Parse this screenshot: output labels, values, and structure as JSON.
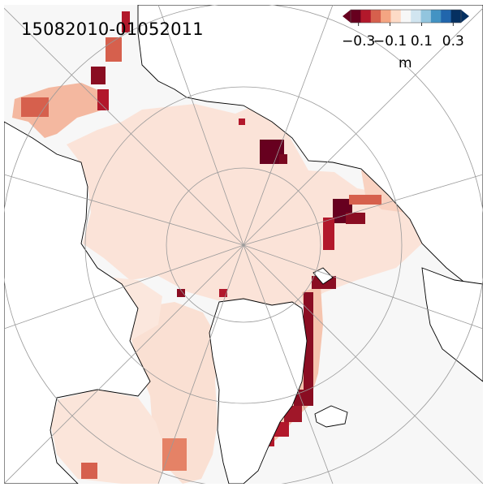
{
  "map": {
    "title": "15082010-01052011",
    "projection": "north-polar-stereographic",
    "background_color": "#f7f7f7",
    "coastline_color": "#000000",
    "graticule_color": "#9a9a9a"
  },
  "colorbar": {
    "colormap": "RdBu",
    "extend": "both",
    "range": [
      -0.35,
      0.35
    ],
    "ticks": [
      "−0.3",
      "−0.1",
      "0.1",
      "0.3"
    ],
    "tick_values": [
      -0.3,
      -0.1,
      0.1,
      0.3
    ],
    "unit": "m",
    "colors": [
      "#67001f",
      "#b2182b",
      "#d6604d",
      "#f4a582",
      "#fddbc7",
      "#f7f7f7",
      "#d1e5f0",
      "#92c5de",
      "#4393c3",
      "#2166ac",
      "#053061"
    ]
  }
}
